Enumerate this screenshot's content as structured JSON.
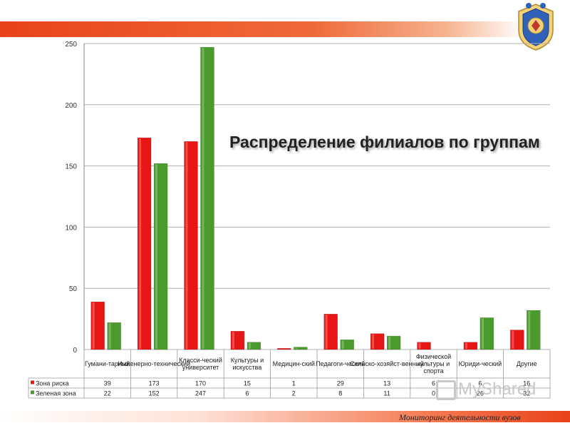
{
  "slide": {
    "title": "Распределение филиалов по группам",
    "footer": "Мониторинг деятельности вузов",
    "watermark": "MyShared"
  },
  "colors": {
    "accent": "#e8421a",
    "series_red": "#e81515",
    "series_green": "#4a9a2c",
    "grid": "#b0b0b0"
  },
  "chart_data": {
    "type": "bar",
    "title": "",
    "xlabel": "",
    "ylabel": "",
    "ylim": [
      0,
      250
    ],
    "yticks": [
      0,
      50,
      100,
      150,
      200,
      250
    ],
    "grid": true,
    "legend": "data-table",
    "categories": [
      "Гумани-тарный",
      "Инженерно-технический",
      "Класси-ческий университет",
      "Культуры и искусства",
      "Медицин-ский",
      "Педагоги-ческий",
      "Сельско-хозяйст-венный",
      "Физической культуры и спорта",
      "Юриди-ческий",
      "Другие"
    ],
    "series": [
      {
        "name": "Зона риска",
        "color": "#e81515",
        "values": [
          39,
          173,
          170,
          15,
          1,
          29,
          13,
          6,
          6,
          16
        ]
      },
      {
        "name": "Зеленая зона",
        "color": "#4a9a2c",
        "values": [
          22,
          152,
          247,
          6,
          2,
          8,
          11,
          0,
          26,
          32
        ]
      }
    ]
  }
}
